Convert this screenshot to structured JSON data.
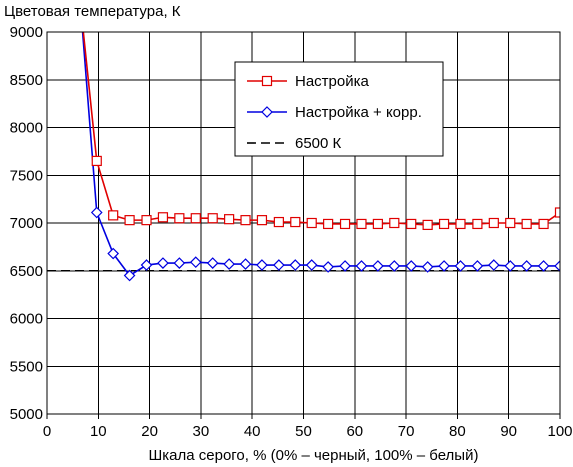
{
  "chart_data": {
    "type": "line",
    "title": "",
    "ylabel": "Цветовая температура, К",
    "xlabel": "Шкала серого, % (0% – черный, 100% – белый)",
    "xlim": [
      0,
      100
    ],
    "ylim": [
      5000,
      9000
    ],
    "xticks": [
      0,
      10,
      20,
      30,
      40,
      50,
      60,
      70,
      80,
      90,
      100
    ],
    "yticks": [
      5000,
      5500,
      6000,
      6500,
      7000,
      7500,
      8000,
      8500,
      9000
    ],
    "grid": true,
    "legend_position": "top-right",
    "series": [
      {
        "name": "Настройка",
        "color": "#e00000",
        "marker": "square",
        "x": [
          6.5,
          9.7,
          12.9,
          16.1,
          19.4,
          22.6,
          25.8,
          29.0,
          32.3,
          35.5,
          38.7,
          41.9,
          45.2,
          48.4,
          51.6,
          54.8,
          58.1,
          61.3,
          64.5,
          67.7,
          71.0,
          74.2,
          77.4,
          80.6,
          83.9,
          87.1,
          90.3,
          93.5,
          96.8,
          100
        ],
        "y": [
          9300,
          7650,
          7080,
          7030,
          7030,
          7060,
          7050,
          7050,
          7050,
          7040,
          7030,
          7030,
          7010,
          7010,
          7000,
          6990,
          6990,
          6990,
          6990,
          7000,
          6990,
          6980,
          6990,
          6990,
          6990,
          7000,
          7000,
          6990,
          6990,
          7110
        ],
        "marker_from_index": 1
      },
      {
        "name": "Настройка + корр.",
        "color": "#0000e0",
        "marker": "diamond",
        "x": [
          6.5,
          9.7,
          12.9,
          16.1,
          19.4,
          22.6,
          25.8,
          29.0,
          32.3,
          35.5,
          38.7,
          41.9,
          45.2,
          48.4,
          51.6,
          54.8,
          58.1,
          61.3,
          64.5,
          67.7,
          71.0,
          74.2,
          77.4,
          80.6,
          83.9,
          87.1,
          90.3,
          93.5,
          96.8,
          100
        ],
        "y": [
          9300,
          7110,
          6680,
          6450,
          6560,
          6580,
          6580,
          6590,
          6580,
          6570,
          6570,
          6560,
          6560,
          6560,
          6560,
          6540,
          6550,
          6550,
          6550,
          6550,
          6550,
          6540,
          6550,
          6550,
          6550,
          6560,
          6550,
          6550,
          6550,
          6550
        ],
        "marker_from_index": 1
      },
      {
        "name": "6500 К",
        "color": "#000000",
        "marker": "none",
        "dash": true,
        "x": [
          0,
          100
        ],
        "y": [
          6500,
          6500
        ]
      }
    ]
  }
}
